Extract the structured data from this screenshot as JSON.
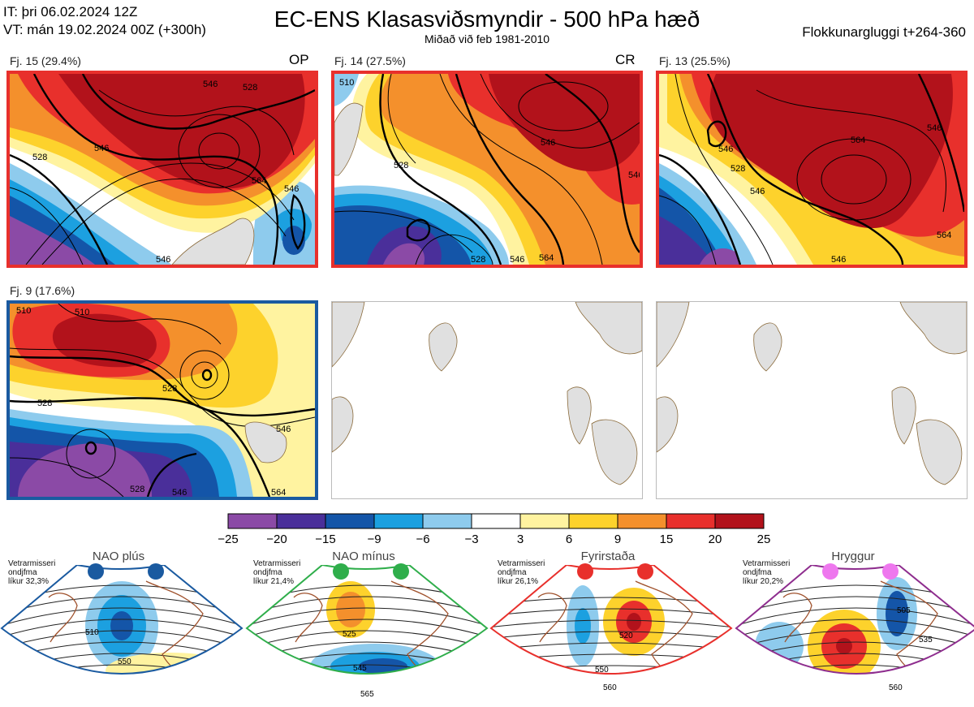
{
  "header": {
    "init_time": "IT: þri 06.02.2024 12Z",
    "valid_time": "VT: mán 19.02.2024 00Z  (+300h)",
    "title": "EC-ENS Klasasviðsmyndir - 500 hPa hæð",
    "subtitle": "Miðað við feb 1981-2010",
    "cluster_window": "Flokkunargluggi t+264-360"
  },
  "panels": [
    {
      "label": "Fj. 15 (29.4%)",
      "tag": "OP",
      "frame_color": "#e8302c"
    },
    {
      "label": "Fj. 14 (27.5%)",
      "tag": "CR",
      "frame_color": "#e8302c"
    },
    {
      "label": "Fj. 13 (25.5%)",
      "tag": "",
      "frame_color": "#e8302c"
    },
    {
      "label": "Fj. 9 (17.6%)",
      "tag": "",
      "frame_color": "#1a5aa0"
    }
  ],
  "contour_labels": {
    "p1": [
      "546",
      "528",
      "528",
      "546",
      "564",
      "546",
      "546"
    ],
    "p2": [
      "510",
      "528",
      "546",
      "528",
      "546",
      "564",
      "546"
    ],
    "p3": [
      "546",
      "528",
      "546",
      "564",
      "546",
      "564",
      "546"
    ],
    "p4": [
      "510",
      "528",
      "528",
      "546",
      "510",
      "528",
      "546",
      "564"
    ]
  },
  "colorbar": {
    "colors": [
      "#8b4aa6",
      "#4a2f9a",
      "#1455a8",
      "#1ca0e0",
      "#8ecbed",
      "#ffffff",
      "#fff3a0",
      "#fdd22c",
      "#f4902c",
      "#e8302c",
      "#b2121b"
    ],
    "ticks": [
      "−25",
      "−20",
      "−15",
      "−9",
      "−6",
      "−3",
      "3",
      "6",
      "9",
      "15",
      "20",
      "25"
    ]
  },
  "regimes": [
    {
      "name": "NAO plús",
      "season": "Vetrarmisseri",
      "desc": "ondjfma",
      "prob": "líkur 32,3%",
      "color": "#1a5aa0",
      "labels": [
        "510",
        "550"
      ]
    },
    {
      "name": "NAO mínus",
      "season": "Vetrarmisseri",
      "desc": "ondjfma",
      "prob": "líkur 21,4%",
      "color": "#2fae4b",
      "labels": [
        "525",
        "545",
        "565"
      ]
    },
    {
      "name": "Fyrirstaða",
      "season": "Vetrarmisseri",
      "desc": "ondjfma",
      "prob": "líkur 26,1%",
      "color": "#e8302c",
      "labels": [
        "520",
        "550",
        "560"
      ]
    },
    {
      "name": "Hryggur",
      "season": "Vetrarmisseri",
      "desc": "ondjfma",
      "prob": "líkur 20,2%",
      "color": "#8e2d8e",
      "labels": [
        "505",
        "535",
        "560"
      ]
    }
  ]
}
